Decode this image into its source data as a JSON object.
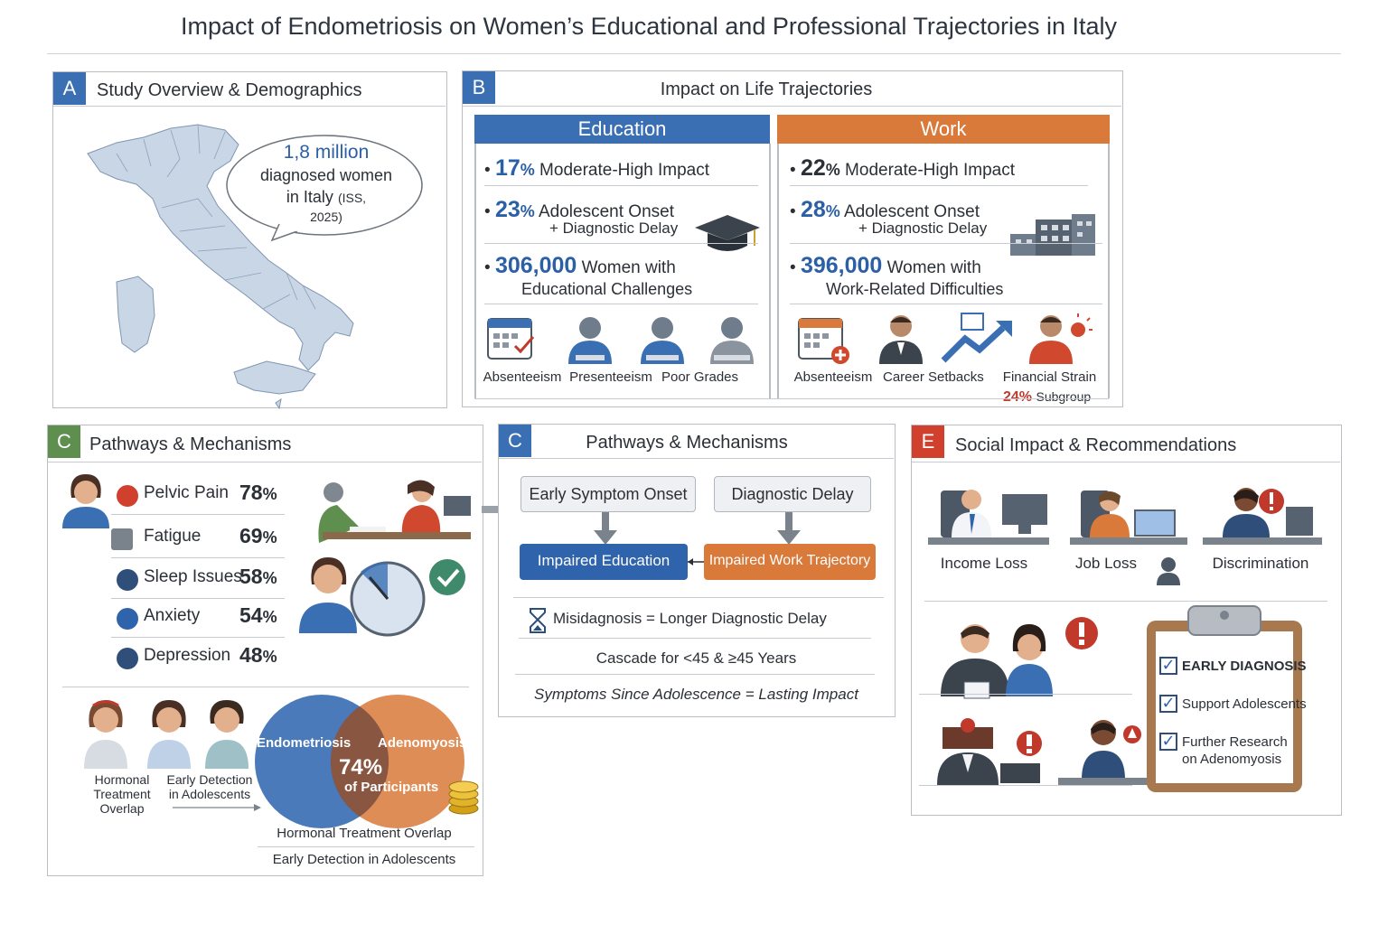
{
  "title": "Impact of Endometriosis on Women’s Educational and Professional Trajectories in Italy",
  "panelA": {
    "badge": "A",
    "heading": "Study Overview & Demographics",
    "bubble_number": "1,8 million",
    "bubble_line1": "diagnosed women",
    "bubble_line2_main": "in Italy",
    "bubble_line2_small": "(ISS,",
    "bubble_line3": "2025)"
  },
  "panelB": {
    "badge": "B",
    "heading": "Impact on Life Trajectories",
    "education": {
      "header": "Education",
      "stat1_value": "17",
      "stat1_pct": "%",
      "stat1_text": "Moderate-High Impact",
      "stat2_value": "23",
      "stat2_pct": "%",
      "stat2_text": "Adolescent Onset",
      "stat2_sub": "+ Diagnostic Delay",
      "stat3_value": "306,000",
      "stat3_text": "Women with",
      "stat3_sub": "Educational Challenges",
      "icons": [
        "Absenteeism",
        "Presenteeism",
        "Poor Grades"
      ]
    },
    "work": {
      "header": "Work",
      "stat1_value": "22",
      "stat1_pct": "%",
      "stat1_text": "Moderate-High Impact",
      "stat2_value": "28",
      "stat2_pct": "%",
      "stat2_text": "Adolescent Onset",
      "stat2_sub": "+ Diagnostic Delay",
      "stat3_value": "396,000",
      "stat3_text": "Women with",
      "stat3_sub": "Work-Related Difficulties",
      "icons": [
        "Absenteeism",
        "Career Setbacks",
        "Financial Strain"
      ],
      "subgroup_value": "24%",
      "subgroup_text": "Subgroup"
    }
  },
  "panelC1": {
    "badge": "C",
    "heading": "Pathways & Mechanisms",
    "symptoms": [
      {
        "label": "Pelvic Pain",
        "value": "78",
        "unit": "%"
      },
      {
        "label": "Fatigue",
        "value": "69",
        "unit": "%"
      },
      {
        "label": "Sleep Issues",
        "value": "58",
        "unit": "%"
      },
      {
        "label": "Anxiety",
        "value": "54",
        "unit": "%"
      },
      {
        "label": "Depression",
        "value": "48",
        "unit": "%"
      }
    ],
    "people_label1": "Hormonal\nTreatment\nOverlap",
    "people_label2": "Early Detection\nin Adolescents",
    "venn_left": "Endometriosis",
    "venn_right": "Adenomyosis",
    "venn_value": "74%",
    "venn_sub": "of Participants",
    "footer1": "Hormonal Treatment Overlap",
    "footer2": "Early Detection in Adolescents"
  },
  "panelC2": {
    "badge": "C",
    "heading": "Pathways & Mechanisms",
    "box1": "Early Symptom Onset",
    "box2": "Diagnostic Delay",
    "box3": "Impaired Education",
    "box4": "Impaired Work Trajectory",
    "line1": "Misidagnosis = Longer Diagnostic Delay",
    "line2": "Cascade for <45 & ≥45 Years",
    "line3": "Symptoms Since Adolescence = Lasting Impact"
  },
  "panelE": {
    "badge": "E",
    "heading": "Social Impact & Recommendations",
    "impacts": [
      "Income Loss",
      "Job Loss",
      "Discrimination"
    ],
    "checklist": [
      "EARLY DIAGNOSIS",
      "Support Adolescents",
      "Further Research\non Adenomyosis"
    ]
  },
  "colors": {
    "blue": "#3b6fb4",
    "orange": "#d9793a",
    "green": "#5f8f4f",
    "red": "#c0392b",
    "map": "#c9d6e6"
  }
}
